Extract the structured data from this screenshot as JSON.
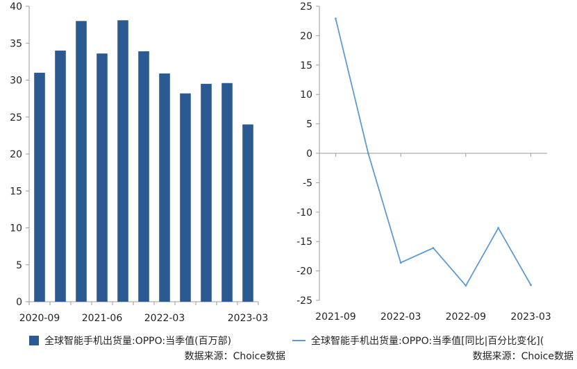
{
  "colors": {
    "bar": "#2B5A92",
    "line": "#5B9BD5",
    "axis": "#9A9A9A"
  },
  "chart_data": [
    {
      "type": "bar",
      "x": [
        "2020-09",
        "2020-12",
        "2021-03",
        "2021-06",
        "2021-09",
        "2021-12",
        "2022-03",
        "2022-06",
        "2022-09",
        "2022-12",
        "2023-03"
      ],
      "x_tick_labels": [
        "2020-09",
        "2021-06",
        "2022-03",
        "2023-03"
      ],
      "series": [
        {
          "name": "全球智能手机出货量:OPPO:当季值(百万部)",
          "values": [
            31.0,
            34.0,
            38.0,
            33.6,
            38.1,
            33.9,
            30.9,
            28.2,
            29.5,
            29.6,
            24.0
          ]
        }
      ],
      "ylim": [
        0,
        40
      ],
      "y_ticks": [
        0,
        5,
        10,
        15,
        20,
        25,
        30,
        35,
        40
      ],
      "source": "数据来源：Choice数据"
    },
    {
      "type": "line",
      "x": [
        "2021-09",
        "2021-12",
        "2022-03",
        "2022-06",
        "2022-09",
        "2022-12",
        "2023-03"
      ],
      "x_tick_labels": [
        "2021-09",
        "2022-03",
        "2022-09",
        "2023-03"
      ],
      "series": [
        {
          "name": "全球智能手机出货量:OPPO:当季值[同比|百分比变化](",
          "values": [
            22.9,
            0.0,
            -18.6,
            -16.1,
            -22.5,
            -12.7,
            -22.4
          ]
        }
      ],
      "ylim": [
        -25,
        25
      ],
      "y_ticks": [
        -25,
        -20,
        -15,
        -10,
        -5,
        0,
        5,
        10,
        15,
        20,
        25
      ],
      "source": "数据来源：Choice数据"
    }
  ]
}
